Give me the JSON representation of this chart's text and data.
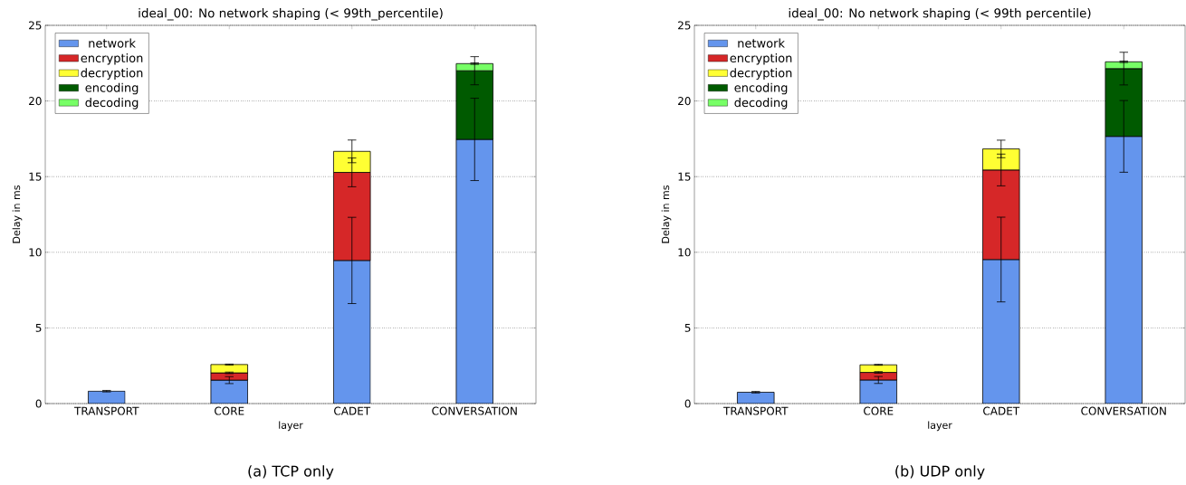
{
  "chart_data": [
    {
      "type": "bar",
      "stacked": true,
      "title": "ideal_00: No network shaping (< 99th_percentile)",
      "xlabel": "layer",
      "ylabel": "Delay in ms",
      "categories": [
        "TRANSPORT",
        "CORE",
        "CADET",
        "CONVERSATION"
      ],
      "series": [
        {
          "name": "network",
          "color": "#6495ed",
          "values": [
            0.82,
            1.55,
            9.46,
            17.46
          ],
          "errors": [
            0.05,
            0.23,
            2.85,
            2.72
          ]
        },
        {
          "name": "encryption",
          "color": "#d62728",
          "values": [
            null,
            0.48,
            5.82,
            null
          ],
          "errors": [
            null,
            0.05,
            0.95,
            null
          ]
        },
        {
          "name": "decryption",
          "color": "#ffff33",
          "values": [
            null,
            0.55,
            1.39,
            null
          ],
          "errors": [
            null,
            0.03,
            0.75,
            null
          ]
        },
        {
          "name": "encoding",
          "color": "#005a00",
          "values": [
            null,
            null,
            null,
            4.54
          ],
          "errors": [
            null,
            null,
            null,
            0.93
          ]
        },
        {
          "name": "decoding",
          "color": "#77ff66",
          "values": [
            null,
            null,
            null,
            0.47
          ],
          "errors": [
            null,
            null,
            null,
            0.05
          ]
        }
      ],
      "ylim": [
        0,
        25
      ],
      "yticks": [
        0,
        5,
        10,
        15,
        20,
        25
      ],
      "grid": "y",
      "legend": "top left",
      "annotations": [
        "(a) TCP only"
      ]
    },
    {
      "type": "bar",
      "stacked": true,
      "title": "ideal_00: No network shaping (< 99th percentile)",
      "xlabel": "layer",
      "ylabel": "Delay in ms",
      "categories": [
        "TRANSPORT",
        "CORE",
        "CADET",
        "CONVERSATION"
      ],
      "series": [
        {
          "name": "network",
          "color": "#6495ed",
          "values": [
            0.75,
            1.56,
            9.52,
            17.66
          ],
          "errors": [
            0.05,
            0.23,
            2.8,
            2.37
          ]
        },
        {
          "name": "encryption",
          "color": "#d62728",
          "values": [
            null,
            0.5,
            5.92,
            null
          ],
          "errors": [
            null,
            0.05,
            1.05,
            null
          ]
        },
        {
          "name": "decryption",
          "color": "#ffff33",
          "values": [
            null,
            0.5,
            1.39,
            null
          ],
          "errors": [
            null,
            0.03,
            0.58,
            null
          ]
        },
        {
          "name": "encoding",
          "color": "#005a00",
          "values": [
            null,
            null,
            null,
            4.48
          ],
          "errors": [
            null,
            null,
            null,
            1.08
          ]
        },
        {
          "name": "decoding",
          "color": "#77ff66",
          "values": [
            null,
            null,
            null,
            0.45
          ],
          "errors": [
            null,
            null,
            null,
            0.05
          ]
        }
      ],
      "ylim": [
        0,
        25
      ],
      "yticks": [
        0,
        5,
        10,
        15,
        20,
        25
      ],
      "grid": "y",
      "legend": "top left",
      "annotations": [
        "(b) UDP only"
      ]
    }
  ]
}
